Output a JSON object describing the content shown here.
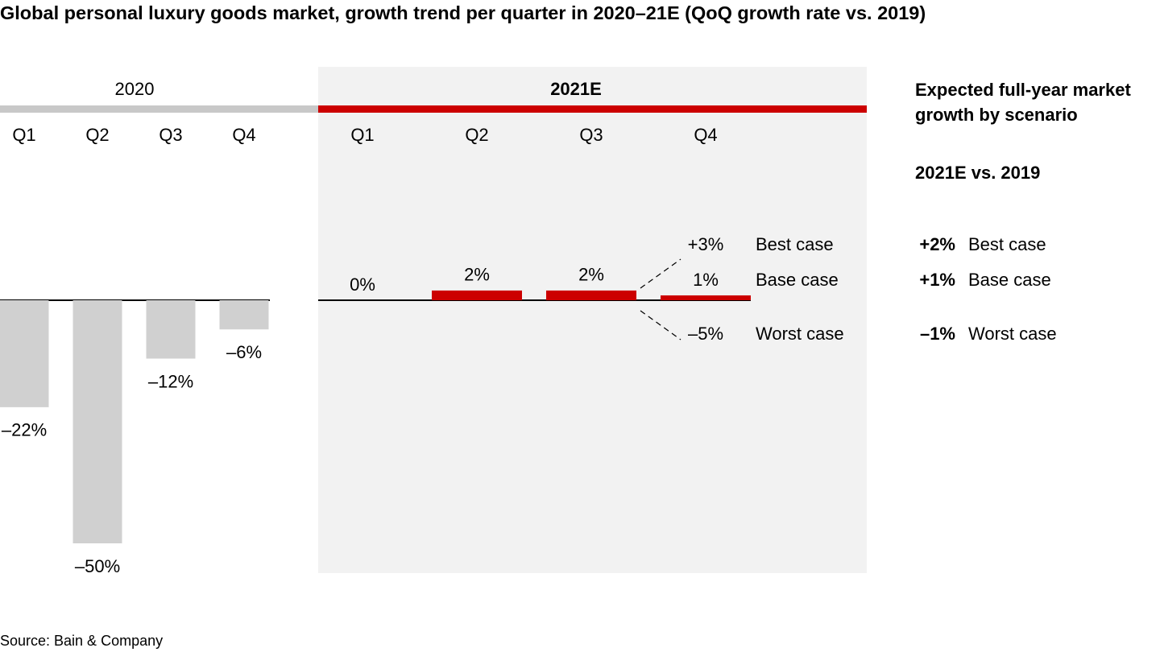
{
  "chart_data": {
    "type": "bar",
    "title": "Global personal luxury goods market, growth trend per quarter in 2020–21E (QoQ growth rate vs. 2019)",
    "groups": [
      {
        "name": "2020",
        "color": "#d0d0d0",
        "header_color": "#c8c8c8",
        "categories": [
          "Q1",
          "Q2",
          "Q3",
          "Q4"
        ],
        "values": [
          -22,
          -50,
          -12,
          -6
        ],
        "value_labels": [
          "–22%",
          "–50%",
          "–12%",
          "–6%"
        ]
      },
      {
        "name": "2021E",
        "color": "#cc0000",
        "header_color": "#cc0000",
        "categories": [
          "Q1",
          "Q2",
          "Q3",
          "Q4"
        ],
        "values": [
          0,
          2,
          2,
          1
        ],
        "value_labels": [
          "0%",
          "2%",
          "2%",
          "1%"
        ]
      }
    ],
    "scenarios": [
      {
        "name": "Best case",
        "color": "#808080",
        "q4": 3,
        "q4_label": "+3%",
        "full_year": 2,
        "full_year_label": "+2%"
      },
      {
        "name": "Base case",
        "color": "#cc0000",
        "full_year": 1,
        "full_year_label": "+1%"
      },
      {
        "name": "Worst case",
        "color": "#000000",
        "q4": -5,
        "q4_label": "–5%",
        "full_year": -1,
        "full_year_label": "–1%"
      }
    ],
    "side_title": "Expected full-year market growth by scenario",
    "side_subtitle": "2021E vs. 2019",
    "source": "Source: Bain & Company"
  }
}
